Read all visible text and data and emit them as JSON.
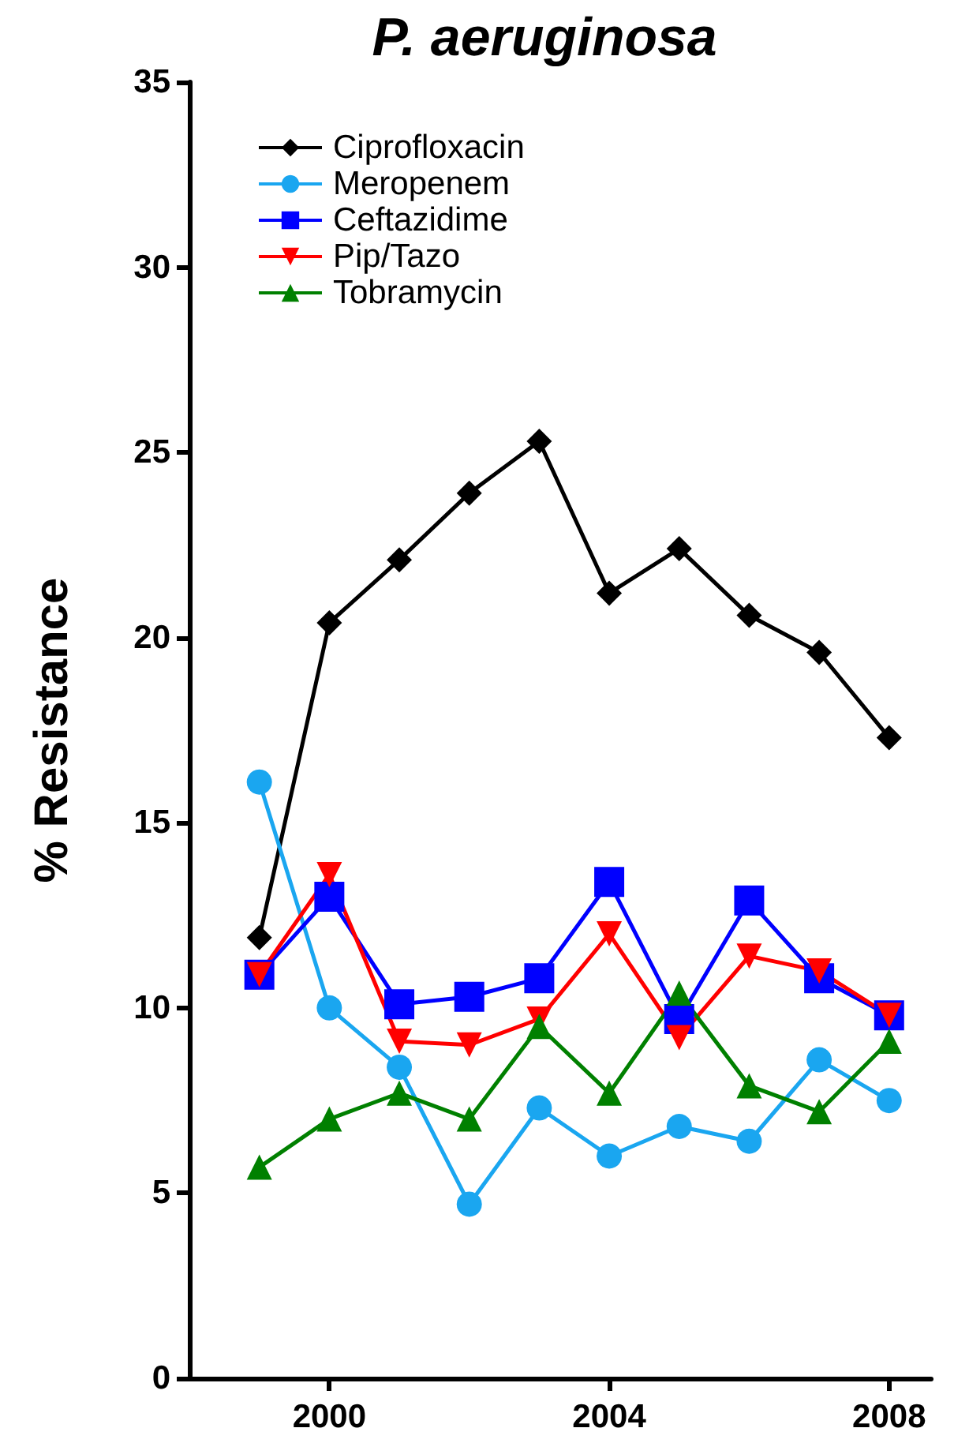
{
  "chart_data": {
    "type": "line",
    "title": "P. aeruginosa",
    "ylabel": "% Resistance",
    "x": [
      1999,
      2000,
      2001,
      2002,
      2003,
      2004,
      2005,
      2006,
      2007,
      2008
    ],
    "xlim": [
      1998,
      2008.6
    ],
    "xticks": [
      2000,
      2004,
      2008
    ],
    "ylim": [
      0,
      35
    ],
    "yticks": [
      0,
      5,
      10,
      15,
      20,
      25,
      30,
      35
    ],
    "grid": false,
    "legend": "top left",
    "line_style": "solid",
    "series": [
      {
        "name": "Ciprofloxacin",
        "color": "#000000",
        "marker": "diamond",
        "values": [
          11.9,
          20.4,
          22.1,
          23.9,
          25.3,
          21.2,
          22.4,
          20.6,
          19.6,
          17.3
        ]
      },
      {
        "name": "Meropenem",
        "color": "#1aa6f0",
        "marker": "circle",
        "values": [
          16.1,
          10.0,
          8.4,
          4.7,
          7.3,
          6.0,
          6.8,
          6.4,
          8.6,
          7.5
        ]
      },
      {
        "name": "Ceftazidime",
        "color": "#0000ff",
        "marker": "square",
        "values": [
          10.9,
          13.0,
          10.1,
          10.3,
          10.8,
          13.4,
          9.7,
          12.9,
          10.8,
          9.8
        ]
      },
      {
        "name": "Pip/Tazo",
        "color": "#ff0000",
        "marker": "triangle_down",
        "values": [
          10.9,
          13.6,
          9.1,
          9.0,
          9.7,
          12.0,
          9.2,
          11.4,
          11.0,
          9.8
        ]
      },
      {
        "name": "Tobramycin",
        "color": "#008000",
        "marker": "triangle",
        "values": [
          5.7,
          7.0,
          7.7,
          7.0,
          9.5,
          7.7,
          10.4,
          7.9,
          7.2,
          9.1
        ]
      }
    ]
  }
}
